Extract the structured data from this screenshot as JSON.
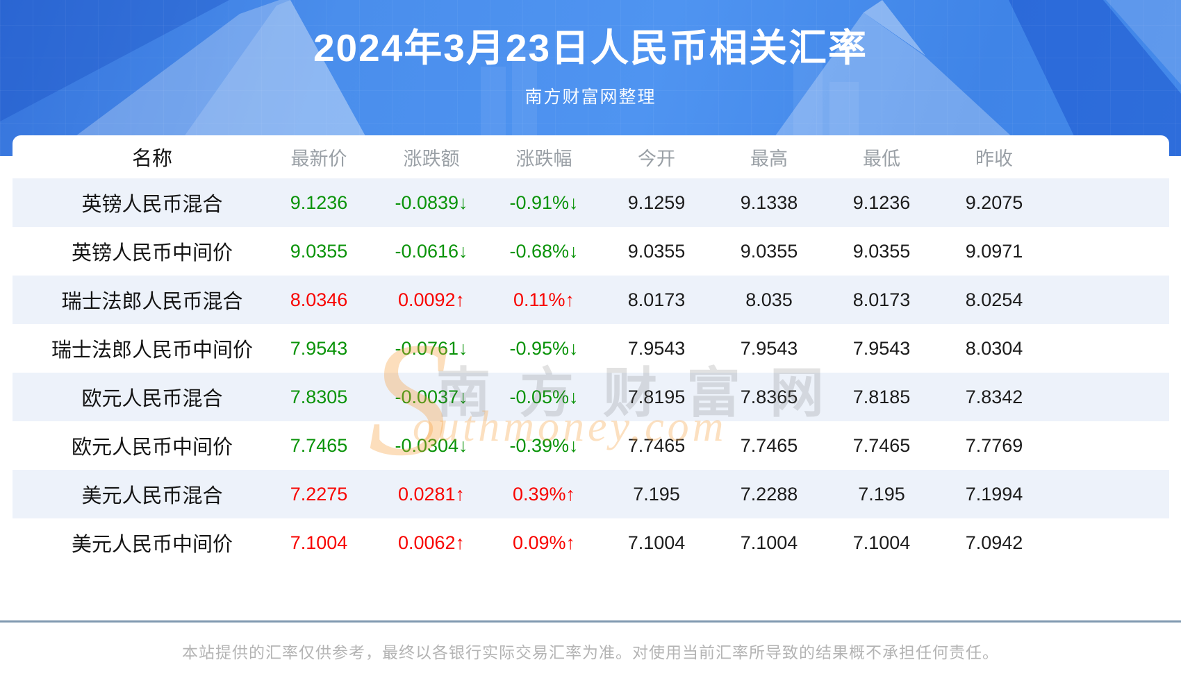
{
  "page": {
    "title": "2024年3月23日人民币相关汇率",
    "subtitle": "南方财富网整理",
    "disclaimer": "本站提供的汇率仅供参考，最终以各银行实际交易汇率为准。对使用当前汇率所导致的结果概不承担任何责任。"
  },
  "watermark": {
    "s": "S",
    "cn": "南方财富网",
    "en": "outhmoney.com"
  },
  "colors": {
    "hero_blue": "#4a8eec",
    "up_red": "#f80400",
    "down_green": "#0a9309",
    "stripe_row": "#edf2fa",
    "header_text": "#9aa0a6",
    "divider": "#8099b0"
  },
  "table": {
    "columns": [
      "名称",
      "最新价",
      "涨跌额",
      "涨跌幅",
      "今开",
      "最高",
      "最低",
      "昨收"
    ],
    "rows": [
      {
        "name": "英镑人民币混合",
        "latest": "9.1236",
        "change": "-0.0839↓",
        "change_pct": "-0.91%↓",
        "trend": "down",
        "open": "9.1259",
        "high": "9.1338",
        "low": "9.1236",
        "prev_close": "9.2075"
      },
      {
        "name": "英镑人民币中间价",
        "latest": "9.0355",
        "change": "-0.0616↓",
        "change_pct": "-0.68%↓",
        "trend": "down",
        "open": "9.0355",
        "high": "9.0355",
        "low": "9.0355",
        "prev_close": "9.0971"
      },
      {
        "name": "瑞士法郎人民币混合",
        "latest": "8.0346",
        "change": "0.0092↑",
        "change_pct": "0.11%↑",
        "trend": "up",
        "open": "8.0173",
        "high": "8.035",
        "low": "8.0173",
        "prev_close": "8.0254"
      },
      {
        "name": "瑞士法郎人民币中间价",
        "latest": "7.9543",
        "change": "-0.0761↓",
        "change_pct": "-0.95%↓",
        "trend": "down",
        "open": "7.9543",
        "high": "7.9543",
        "low": "7.9543",
        "prev_close": "8.0304"
      },
      {
        "name": "欧元人民币混合",
        "latest": "7.8305",
        "change": "-0.0037↓",
        "change_pct": "-0.05%↓",
        "trend": "down",
        "open": "7.8195",
        "high": "7.8365",
        "low": "7.8185",
        "prev_close": "7.8342"
      },
      {
        "name": "欧元人民币中间价",
        "latest": "7.7465",
        "change": "-0.0304↓",
        "change_pct": "-0.39%↓",
        "trend": "down",
        "open": "7.7465",
        "high": "7.7465",
        "low": "7.7465",
        "prev_close": "7.7769"
      },
      {
        "name": "美元人民币混合",
        "latest": "7.2275",
        "change": "0.0281↑",
        "change_pct": "0.39%↑",
        "trend": "up",
        "open": "7.195",
        "high": "7.2288",
        "low": "7.195",
        "prev_close": "7.1994"
      },
      {
        "name": "美元人民币中间价",
        "latest": "7.1004",
        "change": "0.0062↑",
        "change_pct": "0.09%↑",
        "trend": "up",
        "open": "7.1004",
        "high": "7.1004",
        "low": "7.1004",
        "prev_close": "7.0942"
      }
    ]
  },
  "chart_data": {
    "type": "table",
    "title": "2024年3月23日人民币相关汇率",
    "subtitle": "南方财富网整理",
    "columns": [
      "名称",
      "最新价",
      "涨跌额",
      "涨跌幅",
      "今开",
      "最高",
      "最低",
      "昨收"
    ],
    "rows": [
      [
        "英镑人民币混合",
        "9.1236",
        "-0.0839↓",
        "-0.91%↓",
        "9.1259",
        "9.1338",
        "9.1236",
        "9.2075"
      ],
      [
        "英镑人民币中间价",
        "9.0355",
        "-0.0616↓",
        "-0.68%↓",
        "9.0355",
        "9.0355",
        "9.0355",
        "9.0971"
      ],
      [
        "瑞士法郎人民币混合",
        "8.0346",
        "0.0092↑",
        "0.11%↑",
        "8.0173",
        "8.035",
        "8.0173",
        "8.0254"
      ],
      [
        "瑞士法郎人民币中间价",
        "7.9543",
        "-0.0761↓",
        "-0.95%↓",
        "7.9543",
        "7.9543",
        "7.9543",
        "8.0304"
      ],
      [
        "欧元人民币混合",
        "7.8305",
        "-0.0037↓",
        "-0.05%↓",
        "7.8195",
        "7.8365",
        "7.8185",
        "7.8342"
      ],
      [
        "欧元人民币中间价",
        "7.7465",
        "-0.0304↓",
        "-0.39%↓",
        "7.7465",
        "7.7465",
        "7.7465",
        "7.7769"
      ],
      [
        "美元人民币混合",
        "7.2275",
        "0.0281↑",
        "0.39%↑",
        "7.195",
        "7.2288",
        "7.195",
        "7.1994"
      ],
      [
        "美元人民币中间价",
        "7.1004",
        "0.0062↑",
        "0.09%↑",
        "7.1004",
        "7.1004",
        "7.1004",
        "7.0942"
      ]
    ],
    "row_trends": [
      "down",
      "down",
      "up",
      "down",
      "down",
      "down",
      "up",
      "up"
    ]
  }
}
